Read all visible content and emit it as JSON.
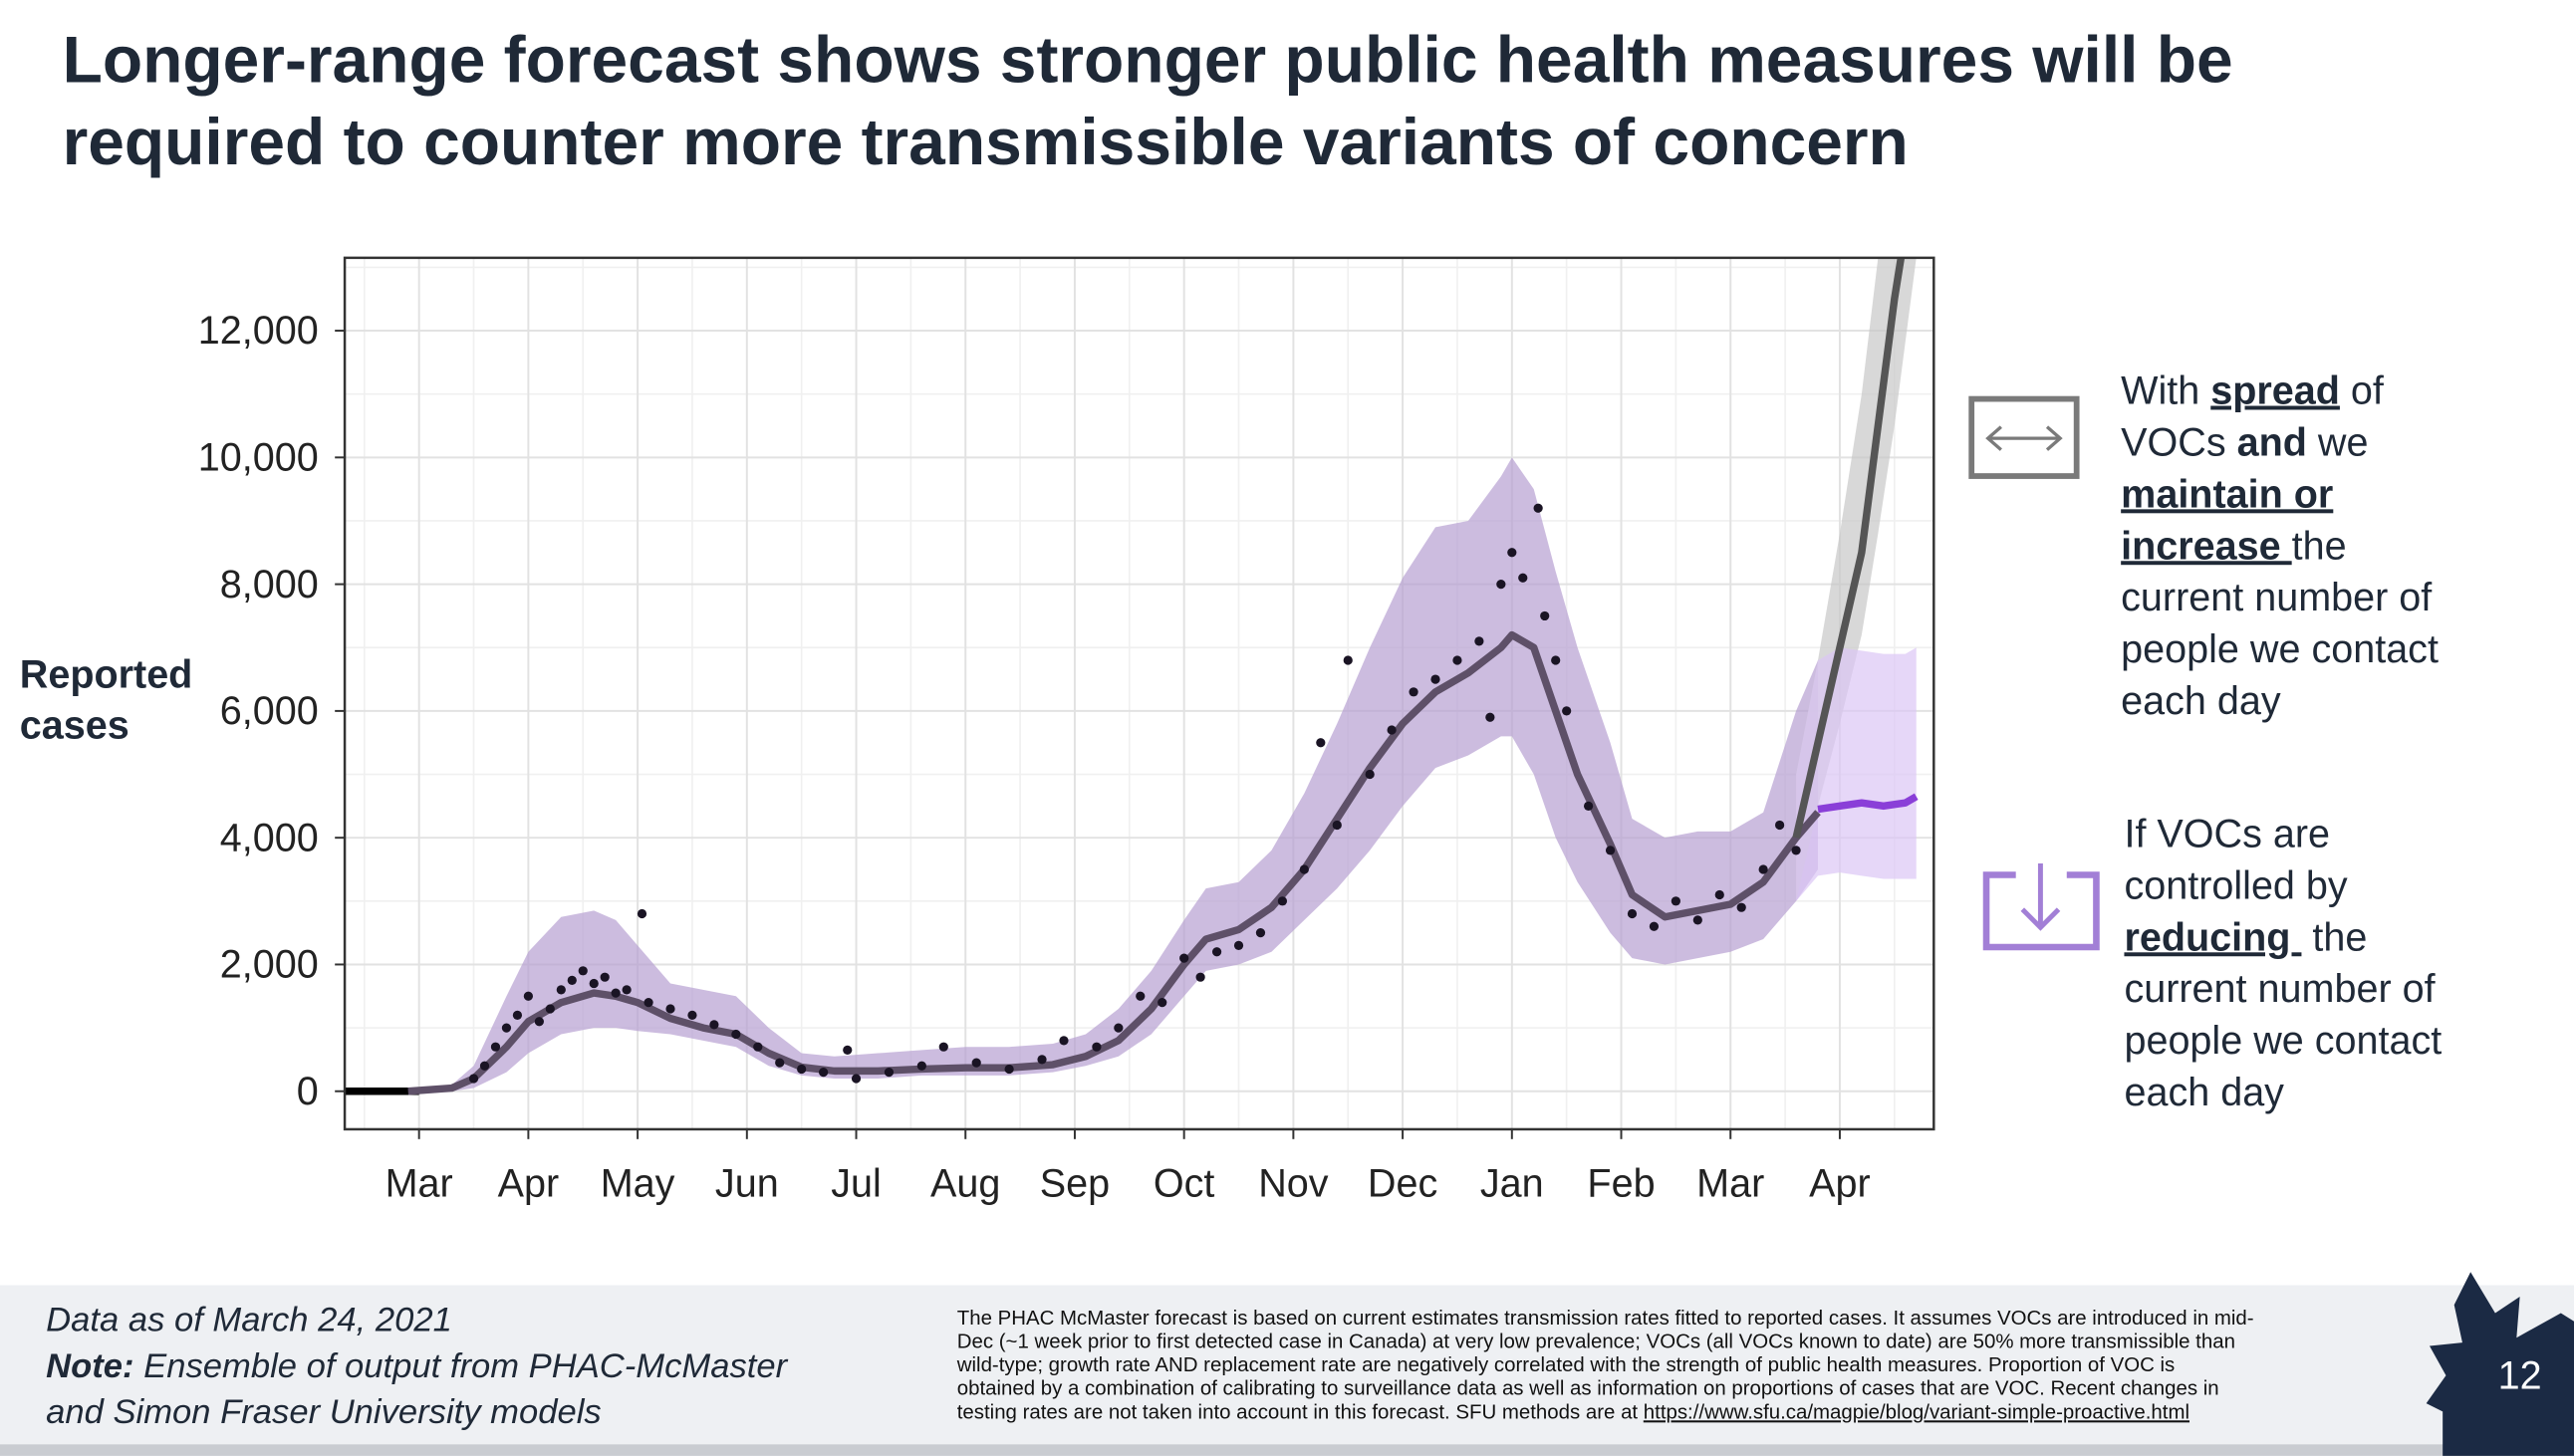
{
  "title": [
    "Longer-range forecast shows stronger public health measures will be",
    "required to counter more transmissible variants of concern"
  ],
  "chart_data": {
    "type": "forecast",
    "ylabel": [
      "Reported",
      "cases"
    ],
    "xlim": [
      0.32,
      14.86
    ],
    "xticks": [
      {
        "value": 1,
        "label": "Mar"
      },
      {
        "value": 2,
        "label": "Apr"
      },
      {
        "value": 3,
        "label": "May"
      },
      {
        "value": 4,
        "label": "Jun"
      },
      {
        "value": 5,
        "label": "Jul"
      },
      {
        "value": 6,
        "label": "Aug"
      },
      {
        "value": 7,
        "label": "Sep"
      },
      {
        "value": 8,
        "label": "Oct"
      },
      {
        "value": 9,
        "label": "Nov"
      },
      {
        "value": 10,
        "label": "Dec"
      },
      {
        "value": 11,
        "label": "Jan"
      },
      {
        "value": 12,
        "label": "Feb"
      },
      {
        "value": 13,
        "label": "Mar"
      },
      {
        "value": 14,
        "label": "Apr"
      }
    ],
    "ylim": [
      -600,
      13150
    ],
    "yticks": [
      0,
      {
        "value": 2000,
        "label": "2,000"
      },
      {
        "value": 4000,
        "label": "4,000"
      },
      {
        "value": 6000,
        "label": "6,000"
      },
      {
        "value": 8000,
        "label": "8,000"
      },
      {
        "value": 10000,
        "label": "10,000"
      },
      {
        "value": 12000,
        "label": "12,000"
      }
    ],
    "grid": true,
    "series": [
      {
        "type": "band",
        "color": "#b79fd2",
        "x": [
          0.32,
          1.0,
          1.3,
          1.5,
          1.8,
          2.0,
          2.3,
          2.6,
          2.8,
          3.0,
          3.3,
          3.6,
          3.9,
          4.2,
          4.5,
          4.8,
          5.2,
          5.6,
          6.0,
          6.4,
          6.8,
          7.1,
          7.4,
          7.7,
          8.0,
          8.2,
          8.5,
          8.8,
          9.1,
          9.4,
          9.7,
          10.0,
          10.3,
          10.6,
          10.9,
          11.0,
          11.2,
          11.4,
          11.6,
          11.9,
          12.1,
          12.4,
          12.7,
          13.0,
          13.3,
          13.6,
          13.8
        ],
        "lower": [
          0,
          0,
          0,
          50,
          300,
          600,
          900,
          1000,
          1000,
          950,
          900,
          800,
          700,
          400,
          250,
          200,
          200,
          250,
          250,
          250,
          300,
          400,
          550,
          900,
          1500,
          1900,
          2000,
          2200,
          2700,
          3200,
          3800,
          4500,
          5100,
          5300,
          5600,
          5600,
          5000,
          4000,
          3300,
          2500,
          2100,
          2000,
          2100,
          2200,
          2400,
          3000,
          3500
        ],
        "upper": [
          0,
          0,
          100,
          400,
          1500,
          2200,
          2750,
          2850,
          2700,
          2300,
          1700,
          1600,
          1500,
          1000,
          600,
          550,
          600,
          650,
          700,
          700,
          750,
          900,
          1300,
          1900,
          2700,
          3200,
          3300,
          3800,
          4700,
          5800,
          7000,
          8100,
          8900,
          9000,
          9700,
          10000,
          9500,
          8200,
          7000,
          5500,
          4300,
          4000,
          4100,
          4100,
          4400,
          6000,
          6800
        ]
      },
      {
        "type": "band",
        "color": "#c8c8c8",
        "x": [
          13.6,
          13.8,
          14.0,
          14.2,
          14.35,
          14.5,
          14.7
        ],
        "lower": [
          3000,
          4500,
          5800,
          7200,
          8800,
          10500,
          13150
        ],
        "upper": [
          5000,
          6800,
          8800,
          11000,
          13150,
          13150,
          13150
        ]
      },
      {
        "type": "band",
        "color": "#dcc6f5",
        "x": [
          13.6,
          13.8,
          14.0,
          14.2,
          14.4,
          14.6,
          14.7
        ],
        "lower": [
          3000,
          3400,
          3450,
          3400,
          3350,
          3350,
          3350
        ],
        "upper": [
          5000,
          6800,
          7000,
          6950,
          6900,
          6900,
          7000
        ]
      },
      {
        "type": "line",
        "color": "#000000",
        "x": [
          0.32,
          1.0
        ],
        "values": [
          0,
          0
        ]
      },
      {
        "type": "line",
        "color": "#5e5068",
        "x": [
          0.9,
          1.3,
          1.5,
          1.8,
          2.0,
          2.3,
          2.6,
          2.8,
          3.0,
          3.3,
          3.6,
          3.9,
          4.2,
          4.5,
          4.8,
          5.2,
          5.6,
          6.0,
          6.4,
          6.8,
          7.1,
          7.4,
          7.7,
          8.0,
          8.2,
          8.5,
          8.8,
          9.1,
          9.4,
          9.7,
          10.0,
          10.3,
          10.6,
          10.9,
          11.0,
          11.2,
          11.4,
          11.6,
          11.9,
          12.1,
          12.4,
          12.7,
          13.0,
          13.3,
          13.6,
          13.8
        ],
        "values": [
          0,
          50,
          200,
          700,
          1100,
          1400,
          1550,
          1500,
          1400,
          1150,
          1000,
          900,
          600,
          380,
          320,
          320,
          350,
          370,
          370,
          420,
          550,
          800,
          1300,
          2000,
          2400,
          2550,
          2900,
          3500,
          4300,
          5100,
          5800,
          6300,
          6600,
          7000,
          7200,
          7000,
          6000,
          5000,
          3900,
          3100,
          2750,
          2850,
          2950,
          3300,
          4000,
          4400
        ]
      },
      {
        "type": "line",
        "color": "#555555",
        "x": [
          13.6,
          13.8,
          14.0,
          14.2,
          14.35,
          14.5,
          14.56
        ],
        "values": [
          4000,
          5500,
          7000,
          8500,
          10500,
          12500,
          13150
        ]
      },
      {
        "type": "line",
        "color": "#8a3fd8",
        "x": [
          13.8,
          14.0,
          14.2,
          14.4,
          14.6,
          14.7
        ],
        "values": [
          4450,
          4500,
          4550,
          4500,
          4550,
          4650
        ]
      },
      {
        "type": "scatter",
        "color": "#1a1424",
        "x": [
          1.5,
          1.6,
          1.7,
          1.8,
          1.9,
          2.0,
          2.1,
          2.2,
          2.3,
          2.4,
          2.5,
          2.6,
          2.7,
          2.8,
          2.9,
          3.04,
          3.1,
          3.3,
          3.5,
          3.7,
          3.9,
          4.1,
          4.3,
          4.5,
          4.7,
          4.92,
          5.0,
          5.3,
          5.6,
          5.8,
          6.1,
          6.4,
          6.7,
          6.9,
          7.2,
          7.4,
          7.6,
          7.8,
          8.0,
          8.15,
          8.3,
          8.5,
          8.7,
          8.9,
          9.1,
          9.25,
          9.4,
          9.5,
          9.7,
          9.9,
          10.1,
          10.3,
          10.5,
          10.7,
          10.8,
          10.9,
          11.0,
          11.1,
          11.24,
          11.3,
          11.4,
          11.5,
          11.7,
          11.9,
          12.1,
          12.3,
          12.5,
          12.7,
          12.9,
          13.1,
          13.3,
          13.45,
          13.6
        ],
        "values": [
          200,
          400,
          700,
          1000,
          1200,
          1500,
          1100,
          1300,
          1600,
          1750,
          1900,
          1700,
          1800,
          1550,
          1600,
          2800,
          1400,
          1300,
          1200,
          1050,
          900,
          700,
          450,
          350,
          300,
          650,
          200,
          300,
          400,
          700,
          450,
          350,
          500,
          800,
          700,
          1000,
          1500,
          1400,
          2100,
          1800,
          2200,
          2300,
          2500,
          3000,
          3500,
          5500,
          4200,
          6800,
          5000,
          5700,
          6300,
          6500,
          6800,
          7100,
          5900,
          8000,
          8500,
          8100,
          9200,
          7500,
          6800,
          6000,
          4500,
          3800,
          2800,
          2600,
          3000,
          2700,
          3100,
          2900,
          3500,
          4200,
          3800
        ]
      }
    ],
    "annotations": [
      {
        "lines": [
          [
            {
              "text": "With ",
              "style": "normal"
            },
            {
              "text": "spread",
              "style": "bold-underline"
            },
            {
              "text": " of",
              "style": "normal"
            }
          ],
          [
            {
              "text": "VOCs ",
              "style": "normal"
            },
            {
              "text": "and",
              "style": "bold"
            },
            {
              "text": " we",
              "style": "normal"
            }
          ],
          [
            {
              "text": "maintain or",
              "style": "bold-underline"
            }
          ],
          [
            {
              "text": "increase ",
              "style": "bold-underline"
            },
            {
              "text": "the",
              "style": "normal"
            }
          ],
          [
            {
              "text": "current number of",
              "style": "normal"
            }
          ],
          [
            {
              "text": "people we contact",
              "style": "normal"
            }
          ],
          [
            {
              "text": "each day",
              "style": "normal"
            }
          ]
        ]
      },
      {
        "lines": [
          [
            {
              "text": "If VOCs are",
              "style": "normal"
            }
          ],
          [
            {
              "text": "controlled by",
              "style": "normal"
            }
          ],
          [
            {
              "text": "reducing ",
              "style": "bold-underline"
            },
            {
              "text": " the",
              "style": "normal"
            }
          ],
          [
            {
              "text": "current number of",
              "style": "normal"
            }
          ],
          [
            {
              "text": "people we contact",
              "style": "normal"
            }
          ],
          [
            {
              "text": "each day",
              "style": "normal"
            }
          ]
        ]
      }
    ]
  },
  "footer": {
    "data_date": "Data as of March 24, 2021",
    "note_label": "Note:",
    "note": [
      " Ensemble of output from PHAC-McMaster",
      "and Simon Fraser University models"
    ],
    "footnote": [
      "The PHAC McMaster forecast is based on current estimates transmission rates fitted to reported cases. It assumes VOCs are introduced in mid-",
      "Dec (~1 week prior to first detected case in Canada) at very low prevalence; VOCs (all VOCs known to date) are 50% more transmissible than",
      "wild-type; growth rate AND replacement rate are negatively correlated with the strength of public health measures. Proportion of VOC is",
      "obtained by a combination of calibrating to surveillance data as well as information on proportions of cases that are VOC. Recent changes in",
      "testing rates are not taken into account in this forecast. SFU methods are at "
    ],
    "link": "https://www.sfu.ca/magpie/blog/variant-simple-proactive.html",
    "page_number": "12"
  }
}
